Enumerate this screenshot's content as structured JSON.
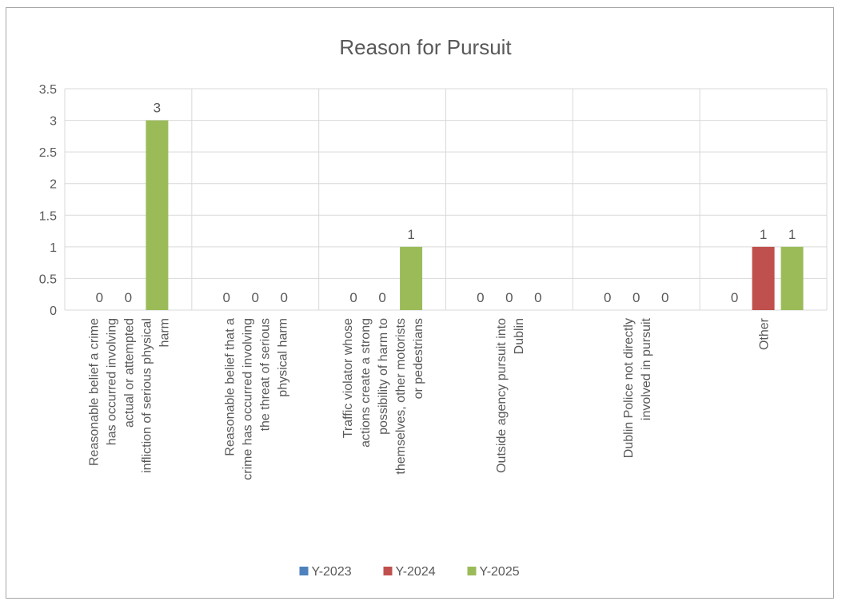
{
  "chart_data": {
    "type": "bar",
    "title": "Reason for Pursuit",
    "xlabel": "",
    "ylabel": "",
    "ylim": [
      0,
      3.5
    ],
    "y_ticks": [
      "0",
      "0.5",
      "1",
      "1.5",
      "2",
      "2.5",
      "3",
      "3.5"
    ],
    "grid": true,
    "legend_position": "bottom",
    "categories": [
      "Reasonable belief a crime has occurred involving actual or attempted infliction of serious physical harm",
      "Reasonable belief that a crime has occurred involving the threat of serious physical harm",
      "Traffic violator whose actions create a strong possibility of harm to themselves, other motorists or pedestrians",
      "Outside agency pursuit into Dublin",
      "Dublin Police not directly involved in pursuit",
      "Other"
    ],
    "category_label_lines": [
      [
        "Reasonable belief a crime",
        "has occurred involving",
        "actual or attempted",
        "infliction of serious physical",
        "harm"
      ],
      [
        "Reasonable belief that a",
        "crime has occurred involving",
        "the threat of serious",
        "physical harm"
      ],
      [
        "Traffic violator whose",
        "actions create a strong",
        "possibility of harm to",
        "themselves, other motorists",
        "or pedestrians"
      ],
      [
        "Outside agency pursuit into",
        "Dublin"
      ],
      [
        "Dublin Police not directly",
        "involved in pursuit"
      ],
      [
        "Other"
      ]
    ],
    "series": [
      {
        "name": "Y-2023",
        "color": "#4f81bd",
        "values": [
          0,
          0,
          0,
          0,
          0,
          0
        ]
      },
      {
        "name": "Y-2024",
        "color": "#c0504d",
        "values": [
          0,
          0,
          0,
          0,
          0,
          1
        ]
      },
      {
        "name": "Y-2025",
        "color": "#9bbb59",
        "values": [
          3,
          0,
          1,
          0,
          0,
          1
        ]
      }
    ]
  }
}
